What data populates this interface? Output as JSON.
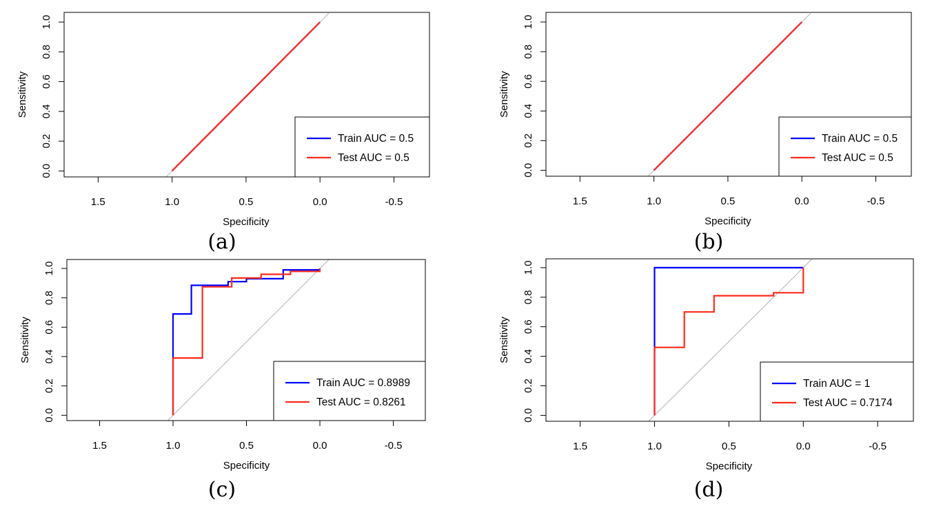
{
  "chart_data": [
    {
      "type": "line",
      "caption": "(a)",
      "xlabel": "Specificity",
      "ylabel": "Sensitivity",
      "xlim": [
        1.73,
        -0.74
      ],
      "ylim": [
        -0.04,
        1.065
      ],
      "xticks": [
        1.5,
        1.0,
        0.5,
        0.0,
        -0.5
      ],
      "xtick_labels": [
        "1.5",
        "1.0",
        "0.5",
        "0.0",
        "-0.5"
      ],
      "yticks": [
        0.0,
        0.2,
        0.4,
        0.6,
        0.8,
        1.0
      ],
      "ytick_labels": [
        "0.0",
        "0.2",
        "0.4",
        "0.6",
        "0.8",
        "1.0"
      ],
      "legend_position": "bottom-right",
      "series": [
        {
          "name": "Train AUC = 0.5",
          "color": "#0000ff",
          "x": [
            1,
            0
          ],
          "y": [
            0,
            1
          ]
        },
        {
          "name": "Test AUC  = 0.5",
          "color": "#ff2a1a",
          "x": [
            1,
            0
          ],
          "y": [
            0,
            1
          ]
        }
      ]
    },
    {
      "type": "line",
      "caption": "(b)",
      "xlabel": "Specificity",
      "ylabel": "Sensitivity",
      "xlim": [
        1.73,
        -0.74
      ],
      "ylim": [
        -0.04,
        1.065
      ],
      "xticks": [
        1.5,
        1.0,
        0.5,
        0.0,
        -0.5
      ],
      "xtick_labels": [
        "1.5",
        "1.0",
        "0.5",
        "0.0",
        "-0.5"
      ],
      "yticks": [
        0.0,
        0.2,
        0.4,
        0.6,
        0.8,
        1.0
      ],
      "ytick_labels": [
        "0.0",
        "0.2",
        "0.4",
        "0.6",
        "0.8",
        "1.0"
      ],
      "legend_position": "bottom-right",
      "series": [
        {
          "name": "Train AUC = 0.5",
          "color": "#0000ff",
          "x": [
            1,
            0
          ],
          "y": [
            0,
            1
          ]
        },
        {
          "name": "Test AUC  = 0.5",
          "color": "#ff2a1a",
          "x": [
            1,
            0
          ],
          "y": [
            0,
            1
          ]
        }
      ]
    },
    {
      "type": "line",
      "caption": "(c)",
      "xlabel": "Specificity",
      "ylabel": "Sensitivity",
      "xlim": [
        1.723,
        -0.718
      ],
      "ylim": [
        -0.036,
        1.061
      ],
      "xticks": [
        1.5,
        1.0,
        0.5,
        0.0,
        -0.5
      ],
      "xtick_labels": [
        "1.5",
        "1.0",
        "0.5",
        "0.0",
        "-0.5"
      ],
      "yticks": [
        0.0,
        0.2,
        0.4,
        0.6,
        0.8,
        1.0
      ],
      "ytick_labels": [
        "0.0",
        "0.2",
        "0.4",
        "0.6",
        "0.8",
        "1.0"
      ],
      "legend_position": "bottom-right",
      "series": [
        {
          "name": "Train AUC = 0.8989",
          "color": "#0000ff",
          "x": [
            1,
            1,
            0.875,
            0.875,
            0.625,
            0.625,
            0.5,
            0.5,
            0.25,
            0.25,
            0
          ],
          "y": [
            0,
            0.69,
            0.69,
            0.885,
            0.885,
            0.91,
            0.91,
            0.93,
            0.93,
            0.99,
            0.99
          ]
        },
        {
          "name": "Test AUC  = 0.8261",
          "color": "#ff2a1a",
          "x": [
            1,
            1,
            0.8,
            0.8,
            0.6,
            0.6,
            0.4,
            0.4,
            0.2,
            0.2,
            0,
            0
          ],
          "y": [
            0,
            0.39,
            0.39,
            0.875,
            0.875,
            0.935,
            0.935,
            0.96,
            0.96,
            0.98,
            0.98,
            1.0
          ]
        }
      ]
    },
    {
      "type": "line",
      "caption": "(d)",
      "xlabel": "Specificity",
      "ylabel": "Sensitivity",
      "xlim": [
        1.73,
        -0.74
      ],
      "ylim": [
        -0.04,
        1.06
      ],
      "xticks": [
        1.5,
        1.0,
        0.5,
        0.0,
        -0.5
      ],
      "xtick_labels": [
        "1.5",
        "1.0",
        "0.5",
        "0.0",
        "-0.5"
      ],
      "yticks": [
        0.0,
        0.2,
        0.4,
        0.6,
        0.8,
        1.0
      ],
      "ytick_labels": [
        "0.0",
        "0.2",
        "0.4",
        "0.6",
        "0.8",
        "1.0"
      ],
      "legend_position": "bottom-right",
      "series": [
        {
          "name": "Train AUC = 1",
          "color": "#0000ff",
          "x": [
            1,
            1,
            0
          ],
          "y": [
            0,
            1,
            1
          ]
        },
        {
          "name": "Test AUC  = 0.7174",
          "color": "#ff2a1a",
          "x": [
            1,
            1,
            0.8,
            0.8,
            0.6,
            0.6,
            0.2,
            0.2,
            0,
            0
          ],
          "y": [
            0,
            0.46,
            0.46,
            0.7,
            0.7,
            0.81,
            0.81,
            0.83,
            0.83,
            1.0
          ]
        }
      ]
    }
  ]
}
